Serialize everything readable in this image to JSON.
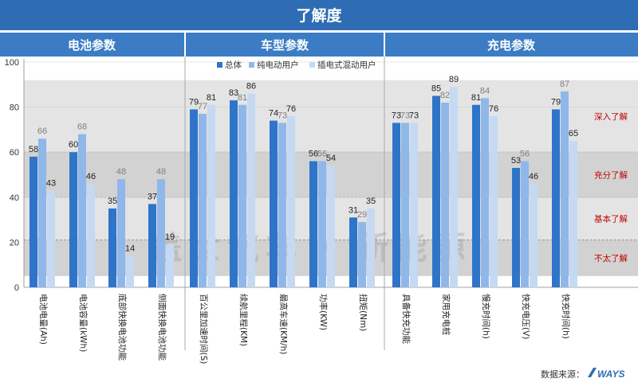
{
  "header": {
    "title": "了解度"
  },
  "sections": [
    {
      "label": "电池参数"
    },
    {
      "label": "车型参数"
    },
    {
      "label": "充电参数"
    }
  ],
  "source": {
    "label": "数据来源：",
    "brand": "WAYS"
  },
  "watermark": "盖世汽车 · 新能源",
  "levels": [
    {
      "label": "深入了解",
      "from": 60,
      "to": 92
    },
    {
      "label": "充分了解",
      "from": 40,
      "to": 60
    },
    {
      "label": "基本了解",
      "from": 21,
      "to": 40
    },
    {
      "label": "不太了解",
      "from": 5,
      "to": 21
    }
  ],
  "colors": {
    "header_bg": "#2e6db4",
    "section_bg": "#3b7cc4",
    "series": [
      "#2e75c9",
      "#8fb7ea",
      "#c5d9f3"
    ],
    "level_text": "#c00000",
    "band_dark": "#d2d2d2",
    "band_light": "#e4e4e4"
  },
  "chart_data": {
    "type": "bar",
    "ylim": [
      0,
      100
    ],
    "yticks": [
      0,
      20,
      40,
      60,
      80,
      100
    ],
    "legend_position": "top",
    "series": [
      {
        "name": "总体"
      },
      {
        "name": "纯电动用户"
      },
      {
        "name": "插电式混动用户"
      }
    ],
    "categories": [
      {
        "label": "电池电量(Ah)",
        "section": 0,
        "values": [
          58,
          66,
          43
        ]
      },
      {
        "label": "电池容量(kWh)",
        "section": 0,
        "values": [
          60,
          68,
          46
        ]
      },
      {
        "label": "底部快换电池功能",
        "section": 0,
        "values": [
          35,
          48,
          14
        ]
      },
      {
        "label": "侧面快换电池功能",
        "section": 0,
        "values": [
          37,
          48,
          19
        ]
      },
      {
        "label": "百公里加速时间(S)",
        "section": 1,
        "values": [
          79,
          77,
          81
        ]
      },
      {
        "label": "续航里程(KM)",
        "section": 1,
        "values": [
          83,
          81,
          86
        ]
      },
      {
        "label": "最高车速(KM/h)",
        "section": 1,
        "values": [
          74,
          73,
          76
        ]
      },
      {
        "label": "功率(KW)",
        "section": 1,
        "values": [
          56,
          56,
          54
        ]
      },
      {
        "label": "扭矩(Nm)",
        "section": 1,
        "values": [
          31,
          29,
          35
        ]
      },
      {
        "label": "具备快充功能",
        "section": 2,
        "values": [
          73,
          73,
          73
        ]
      },
      {
        "label": "家用充电桩",
        "section": 2,
        "values": [
          85,
          82,
          89
        ]
      },
      {
        "label": "慢充时间(h)",
        "section": 2,
        "values": [
          81,
          84,
          76
        ]
      },
      {
        "label": "快充电压(V)",
        "section": 2,
        "values": [
          53,
          56,
          46
        ]
      },
      {
        "label": "快充时间(h)",
        "section": 2,
        "values": [
          79,
          87,
          65
        ]
      }
    ]
  }
}
